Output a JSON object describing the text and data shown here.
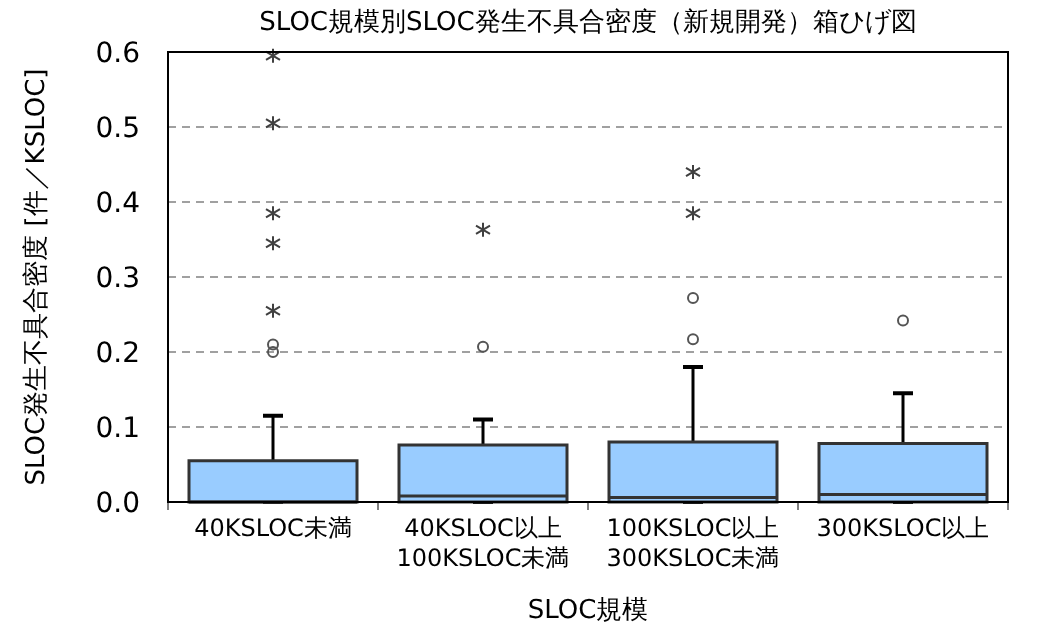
{
  "chart_data": {
    "type": "box",
    "title": "SLOC規模別SLOC発生不具合密度（新規開発）箱ひげ図",
    "xlabel": "SLOC規模",
    "ylabel": "SLOC発生不具合密度 [件／KSLOC]",
    "categories": [
      "40KSLOC未満",
      "40KSLOC以上\n100KSLOC未満",
      "100KSLOC以上\n300KSLOC未満",
      "300KSLOC以上"
    ],
    "color": "#99ccff",
    "boxes": [
      {
        "low": 0,
        "q1": 0,
        "median": 0,
        "q3": 0.055,
        "high": 0.115,
        "outliers": [
          0.2,
          0.21
        ]
      },
      {
        "low": 0,
        "q1": 0,
        "median": 0.008,
        "q3": 0.076,
        "high": 0.11,
        "outliers": [
          0.207
        ]
      },
      {
        "low": 0,
        "q1": 0,
        "median": 0.006,
        "q3": 0.08,
        "high": 0.18,
        "outliers": [
          0.217,
          0.272
        ]
      },
      {
        "low": 0,
        "q1": 0,
        "median": 0.01,
        "q3": 0.078,
        "high": 0.145,
        "outliers": [
          0.242
        ]
      }
    ],
    "series": [
      {
        "type": "scatter",
        "marker": "cross",
        "color": "#404040",
        "x": [
          "40KSLOC未満",
          "40KSLOC未満",
          "40KSLOC未満",
          "40KSLOC未満",
          "40KSLOC未満",
          "40KSLOC以上\n100KSLOC未満",
          "100KSLOC以上\n300KSLOC未満",
          "100KSLOC以上\n300KSLOC未満"
        ],
        "values": [
          0.255,
          0.345,
          0.385,
          0.505,
          0.595,
          0.363,
          0.385,
          0.44
        ]
      }
    ],
    "ylim": [
      0,
      0.6
    ],
    "yticks": [
      {
        "value": 0,
        "label": "0.0"
      },
      0.1,
      0.2,
      0.3,
      0.4,
      0.5,
      0.6
    ],
    "grid": "y"
  }
}
